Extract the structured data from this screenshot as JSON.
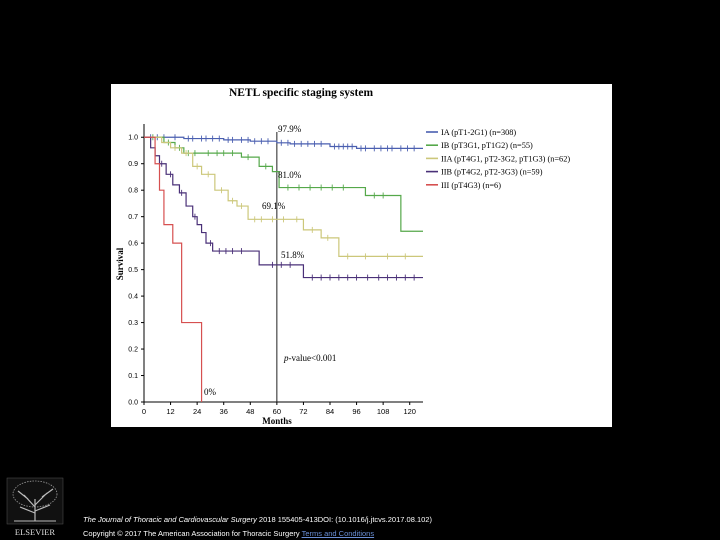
{
  "chart_data": {
    "type": "line",
    "title": "NETL specific staging system",
    "xlabel": "Months",
    "ylabel": "Survival",
    "xlim": [
      0,
      126
    ],
    "ylim": [
      0,
      1.05
    ],
    "xticks": [
      "0",
      "12",
      "24",
      "36",
      "48",
      "60",
      "72",
      "84",
      "96",
      "108",
      "120"
    ],
    "yticks": [
      "0.0",
      "0.1",
      "0.2",
      "0.3",
      "0.4",
      "0.5",
      "0.6",
      "0.7",
      "0.8",
      "0.9",
      "1.0"
    ],
    "legend_position": "right",
    "grid": false,
    "reference_line_x": 60,
    "series": [
      {
        "name": "IA (pT1-2G1) (n=308)",
        "color": "#4a5fb0",
        "steps": [
          [
            0,
            1.0
          ],
          [
            18,
            0.995
          ],
          [
            36,
            0.99
          ],
          [
            48,
            0.985
          ],
          [
            60,
            0.979
          ],
          [
            66,
            0.975
          ],
          [
            84,
            0.965
          ],
          [
            96,
            0.958
          ],
          [
            126,
            0.958
          ]
        ],
        "censor": [
          3,
          6,
          9,
          14,
          20,
          22,
          26,
          28,
          31,
          34,
          38,
          40,
          44,
          47,
          50,
          53,
          56,
          62,
          65,
          68,
          71,
          74,
          77,
          80,
          86,
          88,
          90,
          92,
          94,
          98,
          100,
          104,
          107,
          110,
          112,
          116,
          119,
          122
        ]
      },
      {
        "name": "IB (pT3G1, pT1G2) (n=55)",
        "color": "#55a84a",
        "steps": [
          [
            0,
            1.0
          ],
          [
            9,
            0.98
          ],
          [
            14,
            0.96
          ],
          [
            18,
            0.94
          ],
          [
            26,
            0.94
          ],
          [
            44,
            0.925
          ],
          [
            52,
            0.89
          ],
          [
            58,
            0.87
          ],
          [
            61,
            0.81
          ],
          [
            96,
            0.81
          ],
          [
            100,
            0.78
          ],
          [
            112,
            0.78
          ],
          [
            116,
            0.645
          ],
          [
            126,
            0.645
          ]
        ],
        "censor": [
          4,
          11,
          16,
          20,
          23,
          29,
          33,
          36,
          40,
          47,
          55,
          65,
          70,
          75,
          80,
          85,
          90,
          104,
          108
        ]
      },
      {
        "name": "IIA (pT4G1, pT2-3G2, pT1G3) (n=62)",
        "color": "#ccc77a",
        "steps": [
          [
            0,
            1.0
          ],
          [
            8,
            0.98
          ],
          [
            12,
            0.96
          ],
          [
            17,
            0.94
          ],
          [
            22,
            0.89
          ],
          [
            26,
            0.86
          ],
          [
            32,
            0.8
          ],
          [
            38,
            0.76
          ],
          [
            42,
            0.74
          ],
          [
            47,
            0.69
          ],
          [
            66,
            0.69
          ],
          [
            72,
            0.65
          ],
          [
            80,
            0.62
          ],
          [
            88,
            0.55
          ],
          [
            126,
            0.55
          ]
        ],
        "censor": [
          14,
          19,
          24,
          29,
          35,
          40,
          44,
          50,
          53,
          58,
          63,
          69,
          76,
          83,
          92,
          100,
          110,
          118
        ]
      },
      {
        "name": "IIB (pT4G2, pT2-3G3) (n=59)",
        "color": "#4a3078",
        "steps": [
          [
            0,
            1.0
          ],
          [
            3,
            0.96
          ],
          [
            5,
            0.93
          ],
          [
            7,
            0.9
          ],
          [
            10,
            0.86
          ],
          [
            13,
            0.82
          ],
          [
            16,
            0.79
          ],
          [
            19,
            0.74
          ],
          [
            22,
            0.7
          ],
          [
            24,
            0.67
          ],
          [
            26,
            0.64
          ],
          [
            28,
            0.6
          ],
          [
            31,
            0.57
          ],
          [
            47,
            0.57
          ],
          [
            52,
            0.518
          ],
          [
            70,
            0.518
          ],
          [
            72,
            0.47
          ],
          [
            126,
            0.47
          ]
        ],
        "censor": [
          8,
          12,
          17,
          23,
          30,
          34,
          37,
          40,
          44,
          58,
          62,
          66,
          76,
          80,
          84,
          88,
          92,
          96,
          101,
          106,
          110,
          114,
          118,
          122
        ]
      },
      {
        "name": "III (pT4G3) (n=6)",
        "color": "#d65050",
        "steps": [
          [
            0,
            1.0
          ],
          [
            5,
            0.9
          ],
          [
            7,
            0.8
          ],
          [
            9,
            0.67
          ],
          [
            13,
            0.6
          ],
          [
            17,
            0.3
          ],
          [
            26,
            0.3
          ],
          [
            26,
            0.0
          ]
        ],
        "censor": []
      }
    ],
    "annotations": [
      "97.9%",
      "81.0%",
      "69.1%",
      "51.8%",
      "0%",
      "-value<0.001"
    ],
    "pvalue_italic": "p"
  },
  "caption": {
    "journal": "The Journal of Thoracic and Cardiovascular Surgery",
    "details": " 2018 155405-413DOI: (10.1016/j.jtcvs.2017.08.102)",
    "copyright": "Copyright © 2017 The American Association for Thoracic Surgery ",
    "link": "Terms and Conditions"
  },
  "publisher": "ELSEVIER"
}
